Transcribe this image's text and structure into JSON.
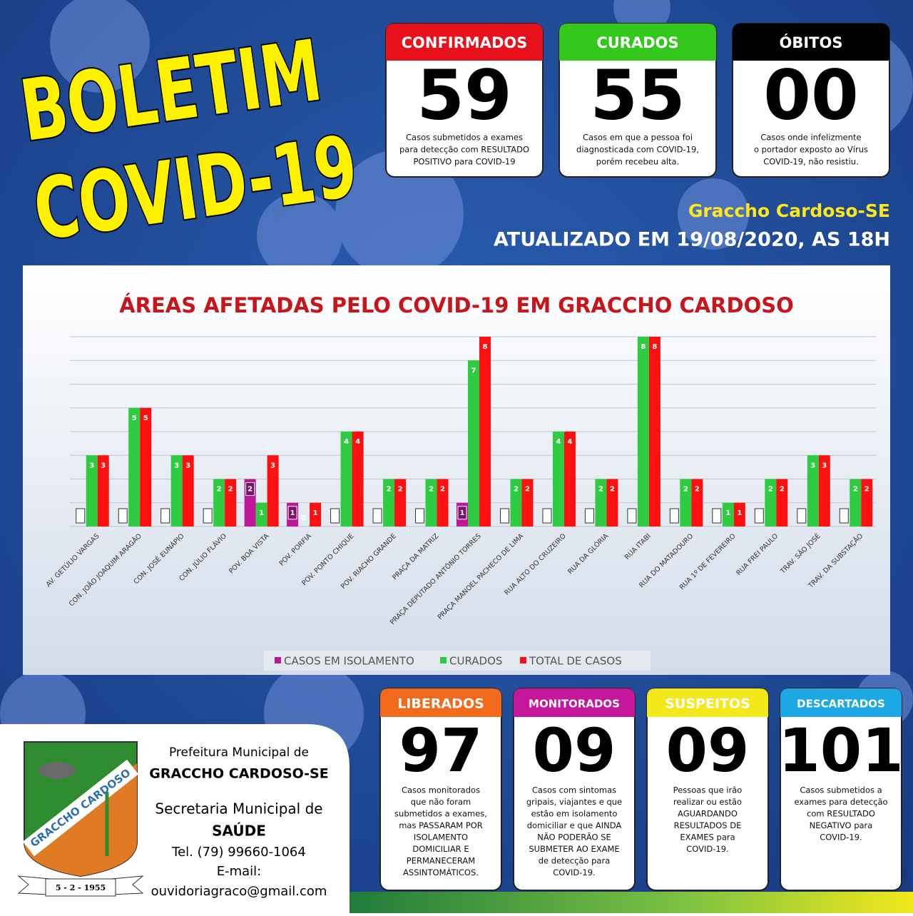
{
  "header": {
    "title_lines": [
      "BOLETIM",
      "COVID-19"
    ],
    "location": "Graccho Cardoso-SE",
    "updated": "ATUALIZADO EM 19/08/2020, AS 18H"
  },
  "top_cards": [
    {
      "title": "CONFIRMADOS",
      "number": "59",
      "color": "#e8101a",
      "description": [
        "Casos submetidos a exames",
        "para detecção com RESULTADO",
        "POSITIVO para COVID-19"
      ]
    },
    {
      "title": "CURADOS",
      "number": "55",
      "color": "#35c81c",
      "description": [
        "Casos em que a pessoa foi",
        "diagnosticada com COVID-19,",
        "porém recebeu alta."
      ]
    },
    {
      "title": "ÓBITOS",
      "number": "00",
      "color": "#000000",
      "description": [
        "Casos onde infelizmente",
        "o portador exposto ao Vírus",
        "COVID-19, não resistiu."
      ]
    }
  ],
  "bottom_cards": [
    {
      "title": "LIBERADOS",
      "number": "97",
      "color": "#f26a1b",
      "description": [
        "Casos monitorados",
        "que não foram",
        "submetidos a exames,",
        "mas PASSARAM POR",
        "ISOLAMENTO",
        "DOMICILIAR E",
        "PERMANECERAM",
        "ASSINTOMÁTICOS."
      ]
    },
    {
      "title": "MONITORADOS",
      "number": "09",
      "color": "#c4179c",
      "description": [
        "Casos com sintomas",
        "gripais, viajantes e que",
        "estão em isolamento",
        "domiciliar e que AINDA",
        "NÃO PODERÃO SE",
        "SUBMETER AO EXAME",
        "de detecção para",
        "COVID-19."
      ]
    },
    {
      "title": "SUSPEITOS",
      "number": "09",
      "color": "#f2e81a",
      "description": [
        "Pessoas que irão",
        "realizar ou estão",
        "AGUARDANDO",
        "RESULTADOS DE",
        "EXAMES para",
        "COVID-19."
      ]
    },
    {
      "title": "DESCARTADOS",
      "number": "101",
      "color": "#1ca8e4",
      "description": [
        "Casos submetidos a",
        "exames para detecção",
        "com RESULTADO",
        "NEGATIVO para",
        "COVID-19."
      ]
    }
  ],
  "footer": {
    "lines": [
      "Prefeitura Municipal de",
      "GRACCHO CARDOSO-SE",
      "Secretaria Municipal de",
      "SAÚDE",
      "Tel. (79) 99660-1064",
      "E-mail:",
      "ouvidoriagraco@gmail.com"
    ],
    "logo_text": "GRACCHO CARDOSO",
    "logo_date": "5 - 2 - 1955"
  },
  "chart_data": {
    "type": "bar",
    "title": "ÁREAS AFETADAS PELO COVID-19 EM GRACCHO CARDOSO",
    "categories": [
      "AV. GETÚLIO VARGAS",
      "CON. JOÃO JOAQUIM ARAGÃO",
      "CON. JOSÉ EUNÁPIO",
      "CON. JÚLIO FLÁVIO",
      "POV. BOA VISTA",
      "POV. PORFIA",
      "POV. PONTO CHIQUE",
      "POV. RIACHO GRANDE",
      "PRAÇA DA MATRIZ",
      "PRAÇA DEPUTADO ANTÔNIO TORRES",
      "PRAÇA MANOEL PACHECO DE LIMA",
      "RUA ALTO DO CRUZEIRO",
      "RUA DA GLÓRIA",
      "RUA ITABI",
      "RUA DO MATADOURO",
      "RUA 1º DE FEVEREIRO",
      "RUA FREI PAULO",
      "TRAV. SÃO JOSÉ",
      "TRAV. DA SUBSTAÇÃO"
    ],
    "series": [
      {
        "name": "CASOS EM ISOLAMENTO",
        "color": "#c0169a",
        "values": [
          null,
          null,
          null,
          null,
          2,
          1,
          null,
          null,
          null,
          1,
          null,
          null,
          null,
          null,
          null,
          null,
          null,
          null,
          null
        ]
      },
      {
        "name": "CURADOS",
        "color": "#2ecc40",
        "values": [
          3,
          5,
          3,
          2,
          1,
          0,
          4,
          2,
          2,
          7,
          2,
          4,
          2,
          8,
          2,
          1,
          2,
          3,
          2
        ]
      },
      {
        "name": "TOTAL DE CASOS",
        "color": "#ff1010",
        "values": [
          3,
          5,
          3,
          2,
          3,
          1,
          4,
          2,
          2,
          8,
          2,
          4,
          2,
          8,
          2,
          1,
          2,
          3,
          2
        ]
      }
    ],
    "ylim": [
      0,
      8
    ],
    "yticks": [
      0,
      1,
      2,
      3,
      4,
      5,
      6,
      7,
      8
    ],
    "grid": true
  }
}
